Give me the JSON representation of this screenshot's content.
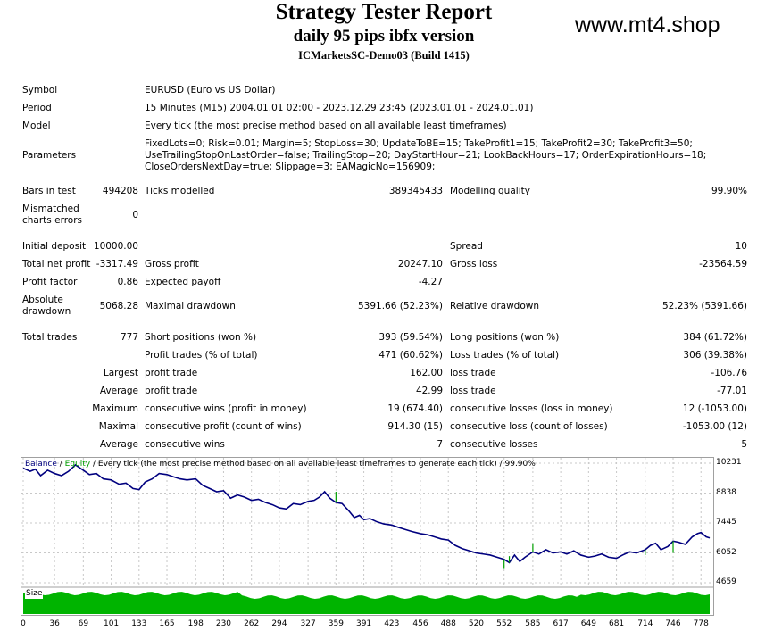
{
  "header": {
    "title": "Strategy Tester Report",
    "subtitle": "daily 95 pips ibfx version",
    "server": "ICMarketsSC-Demo03 (Build 1415)",
    "site": "www.mt4.shop"
  },
  "report": {
    "symbol_label": "Symbol",
    "symbol": "EURUSD (Euro vs US Dollar)",
    "period_label": "Period",
    "period": "15 Minutes (M15) 2004.01.01 02:00 - 2023.12.29 23:45 (2023.01.01 - 2024.01.01)",
    "model_label": "Model",
    "model": "Every tick (the most precise method based on all available least timeframes)",
    "parameters_label": "Parameters",
    "parameters_line1": "FixedLots=0; Risk=0.01; Margin=5; StopLoss=30; UpdateToBE=15; TakeProfit1=15; TakeProfit2=30; TakeProfit3=50;",
    "parameters_line2": "UseTrailingStopOnLastOrder=false; TrailingStop=20; DayStartHour=21; LookBackHours=17; OrderExpirationHours=18;",
    "parameters_line3": "CloseOrdersNextDay=true; Slippage=3; EAMagicNo=156909;",
    "bars_label": "Bars in test",
    "bars": "494208",
    "ticks_label": "Ticks modelled",
    "ticks": "389345433",
    "quality_label": "Modelling quality",
    "quality": "99.90%",
    "mismatch_label1": "Mismatched",
    "mismatch_label2": "charts errors",
    "mismatch": "0",
    "deposit_label": "Initial deposit",
    "deposit": "10000.00",
    "spread_label": "Spread",
    "spread": "10",
    "net_label": "Total net profit",
    "net": "-3317.49",
    "gross_profit_label": "Gross profit",
    "gross_profit": "20247.10",
    "gross_loss_label": "Gross loss",
    "gross_loss": "-23564.59",
    "pf_label": "Profit factor",
    "pf": "0.86",
    "payoff_label": "Expected payoff",
    "payoff": "-4.27",
    "abs_dd_label1": "Absolute",
    "abs_dd_label2": "drawdown",
    "abs_dd": "5068.28",
    "max_dd_label": "Maximal drawdown",
    "max_dd": "5391.66 (52.23%)",
    "rel_dd_label": "Relative drawdown",
    "rel_dd": "52.23% (5391.66)",
    "trades_label": "Total trades",
    "trades": "777",
    "short_label": "Short positions (won %)",
    "short": "393 (59.54%)",
    "long_label": "Long positions (won %)",
    "long": "384 (61.72%)",
    "pt_label": "Profit trades (% of total)",
    "pt": "471 (60.62%)",
    "lt_label": "Loss trades (% of total)",
    "lt": "306 (39.38%)",
    "largest": "Largest",
    "average": "Average",
    "maximum": "Maximum",
    "maximal": "Maximal",
    "lp_label": "profit trade",
    "lp": "162.00",
    "ll_label": "loss trade",
    "ll": "-106.76",
    "ap_label": "profit trade",
    "ap": "42.99",
    "al_label": "loss trade",
    "al": "-77.01",
    "mcw_label": "consecutive wins (profit in money)",
    "mcw": "19 (674.40)",
    "mcl_label": "consecutive losses (loss in money)",
    "mcl": "12 (-1053.00)",
    "mcp_label": "consecutive profit (count of wins)",
    "mcp": "914.30 (15)",
    "mcls_label": "consecutive loss (count of losses)",
    "mcls": "-1053.00 (12)",
    "acw_label": "consecutive wins",
    "acw": "7",
    "acl_label": "consecutive losses",
    "acl": "5"
  },
  "chart_labels": {
    "balance": "Balance",
    "sep": " / ",
    "equity": "Equity",
    "desc": " / Every tick (the most precise method based on all available least timeframes to generate each tick) / 99.90%",
    "size": "Size"
  },
  "chart_data": {
    "type": "line",
    "x_ticks": [
      "0",
      "36",
      "69",
      "101",
      "133",
      "165",
      "198",
      "230",
      "262",
      "294",
      "327",
      "359",
      "391",
      "423",
      "456",
      "488",
      "520",
      "552",
      "585",
      "617",
      "649",
      "681",
      "714",
      "746",
      "778"
    ],
    "y_ticks": [
      "10231",
      "8838",
      "7445",
      "6052",
      "4659"
    ],
    "ylim": [
      4659,
      10231
    ],
    "xlim": [
      0,
      788
    ],
    "series": [
      {
        "name": "Balance",
        "color": "#00007f",
        "x": [
          0,
          8,
          14,
          20,
          28,
          36,
          44,
          52,
          60,
          69,
          76,
          84,
          92,
          101,
          110,
          118,
          126,
          133,
          140,
          148,
          156,
          165,
          172,
          180,
          188,
          198,
          206,
          214,
          222,
          230,
          238,
          246,
          254,
          262,
          270,
          278,
          286,
          294,
          302,
          310,
          318,
          327,
          334,
          340,
          346,
          352,
          359,
          366,
          374,
          380,
          386,
          391,
          398,
          406,
          414,
          423,
          430,
          438,
          446,
          456,
          464,
          472,
          480,
          488,
          496,
          504,
          512,
          520,
          528,
          536,
          544,
          552,
          558,
          564,
          570,
          576,
          585,
          592,
          600,
          608,
          617,
          624,
          632,
          640,
          649,
          656,
          664,
          672,
          681,
          688,
          696,
          704,
          714,
          720,
          726,
          732,
          740,
          746,
          752,
          760,
          768,
          774,
          778,
          784,
          788
        ],
        "y": [
          10000,
          9850,
          9950,
          9650,
          9900,
          9750,
          9650,
          9850,
          10150,
          9900,
          9700,
          9750,
          9500,
          9450,
          9250,
          9300,
          9050,
          9000,
          9350,
          9500,
          9750,
          9700,
          9600,
          9500,
          9450,
          9500,
          9200,
          9050,
          8900,
          8950,
          8600,
          8750,
          8650,
          8500,
          8550,
          8400,
          8300,
          8150,
          8100,
          8350,
          8300,
          8450,
          8500,
          8650,
          8900,
          8600,
          8400,
          8350,
          8000,
          7700,
          7800,
          7600,
          7650,
          7500,
          7400,
          7350,
          7250,
          7150,
          7050,
          6950,
          6900,
          6800,
          6700,
          6650,
          6400,
          6250,
          6150,
          6050,
          6000,
          5950,
          5850,
          5750,
          5600,
          5950,
          5650,
          5850,
          6100,
          6000,
          6200,
          6050,
          6100,
          6000,
          6150,
          5950,
          5850,
          5900,
          6000,
          5850,
          5800,
          5950,
          6100,
          6050,
          6200,
          6400,
          6500,
          6200,
          6350,
          6600,
          6550,
          6450,
          6800,
          6950,
          7000,
          6800,
          6750
        ]
      },
      {
        "name": "Equity",
        "color": "#00a000",
        "spikes": [
          {
            "x": 359,
            "y": 8900
          },
          {
            "x": 552,
            "y": 5300
          },
          {
            "x": 558,
            "y": 5900
          },
          {
            "x": 585,
            "y": 6500
          },
          {
            "x": 714,
            "y": 5950
          },
          {
            "x": 746,
            "y": 6050
          }
        ]
      }
    ],
    "size_bars": "filled"
  }
}
